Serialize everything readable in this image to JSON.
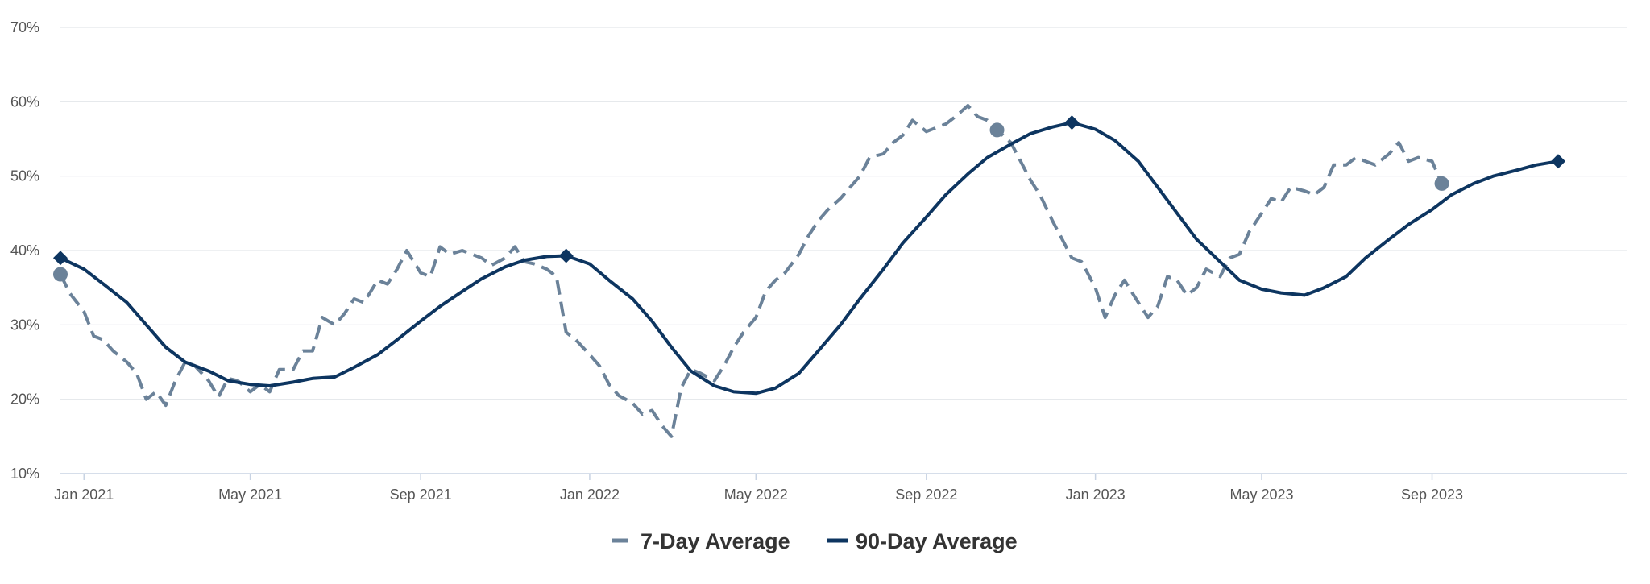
{
  "chart_data": {
    "type": "line",
    "title": "",
    "xlabel": "",
    "ylabel": "",
    "ylim": [
      10,
      70
    ],
    "y_ticks": [
      "10%",
      "20%",
      "30%",
      "40%",
      "50%",
      "60%",
      "70%"
    ],
    "x_range": [
      "2020-12-15",
      "2024-01-20"
    ],
    "x_ticks": [
      {
        "date": "2021-01-01",
        "label": "Jan 2021"
      },
      {
        "date": "2021-05-01",
        "label": "May 2021"
      },
      {
        "date": "2021-09-01",
        "label": "Sep 2021"
      },
      {
        "date": "2022-01-01",
        "label": "Jan 2022"
      },
      {
        "date": "2022-05-01",
        "label": "May 2022"
      },
      {
        "date": "2022-09-01",
        "label": "Sep 2022"
      },
      {
        "date": "2023-01-01",
        "label": "Jan 2023"
      },
      {
        "date": "2023-05-01",
        "label": "May 2023"
      },
      {
        "date": "2023-09-01",
        "label": "Sep 2023"
      }
    ],
    "grid": true,
    "legend_position": "bottom-center",
    "series": [
      {
        "name": "7-Day Average",
        "color": "#6b8299",
        "style": "dashed",
        "marker": "circle",
        "points": [
          [
            "2020-12-15",
            36.8
          ],
          [
            "2020-12-22",
            34.2
          ],
          [
            "2021-01-01",
            31.8
          ],
          [
            "2021-01-08",
            28.5
          ],
          [
            "2021-01-15",
            28.0
          ],
          [
            "2021-01-22",
            26.5
          ],
          [
            "2021-02-01",
            25.0
          ],
          [
            "2021-02-08",
            23.5
          ],
          [
            "2021-02-15",
            20.0
          ],
          [
            "2021-02-22",
            21.0
          ],
          [
            "2021-03-01",
            19.2
          ],
          [
            "2021-03-08",
            22.5
          ],
          [
            "2021-03-15",
            25.0
          ],
          [
            "2021-03-22",
            24.5
          ],
          [
            "2021-04-01",
            22.5
          ],
          [
            "2021-04-08",
            20.3
          ],
          [
            "2021-04-15",
            22.8
          ],
          [
            "2021-04-22",
            22.5
          ],
          [
            "2021-05-01",
            21.0
          ],
          [
            "2021-05-08",
            22.0
          ],
          [
            "2021-05-15",
            21.0
          ],
          [
            "2021-05-22",
            24.0
          ],
          [
            "2021-06-01",
            24.0
          ],
          [
            "2021-06-08",
            26.5
          ],
          [
            "2021-06-15",
            26.5
          ],
          [
            "2021-06-22",
            31.0
          ],
          [
            "2021-07-01",
            30.0
          ],
          [
            "2021-07-08",
            31.5
          ],
          [
            "2021-07-15",
            33.5
          ],
          [
            "2021-07-22",
            33.0
          ],
          [
            "2021-08-01",
            36.0
          ],
          [
            "2021-08-08",
            35.5
          ],
          [
            "2021-08-15",
            37.5
          ],
          [
            "2021-08-22",
            40.0
          ],
          [
            "2021-09-01",
            37.0
          ],
          [
            "2021-09-08",
            36.5
          ],
          [
            "2021-09-15",
            40.5
          ],
          [
            "2021-09-22",
            39.5
          ],
          [
            "2021-10-01",
            40.0
          ],
          [
            "2021-10-08",
            39.5
          ],
          [
            "2021-10-15",
            39.0
          ],
          [
            "2021-10-22",
            38.0
          ],
          [
            "2021-11-01",
            39.0
          ],
          [
            "2021-11-08",
            40.5
          ],
          [
            "2021-11-15",
            38.5
          ],
          [
            "2021-11-22",
            38.2
          ],
          [
            "2021-12-01",
            37.5
          ],
          [
            "2021-12-08",
            36.5
          ],
          [
            "2021-12-15",
            29.0
          ],
          [
            "2021-12-22",
            28.0
          ],
          [
            "2022-01-01",
            26.0
          ],
          [
            "2022-01-08",
            24.5
          ],
          [
            "2022-01-15",
            22.0
          ],
          [
            "2022-01-22",
            20.5
          ],
          [
            "2022-02-01",
            19.5
          ],
          [
            "2022-02-08",
            18.0
          ],
          [
            "2022-02-15",
            18.5
          ],
          [
            "2022-02-22",
            16.5
          ],
          [
            "2022-03-01",
            15.0
          ],
          [
            "2022-03-08",
            21.5
          ],
          [
            "2022-03-15",
            24.0
          ],
          [
            "2022-03-22",
            23.5
          ],
          [
            "2022-04-01",
            22.5
          ],
          [
            "2022-04-08",
            24.5
          ],
          [
            "2022-04-15",
            27.0
          ],
          [
            "2022-04-22",
            29.0
          ],
          [
            "2022-05-01",
            31.0
          ],
          [
            "2022-05-08",
            34.5
          ],
          [
            "2022-05-15",
            36.0
          ],
          [
            "2022-05-22",
            37.0
          ],
          [
            "2022-06-01",
            39.5
          ],
          [
            "2022-06-08",
            42.0
          ],
          [
            "2022-06-15",
            44.0
          ],
          [
            "2022-06-22",
            45.5
          ],
          [
            "2022-07-01",
            47.0
          ],
          [
            "2022-07-08",
            48.5
          ],
          [
            "2022-07-15",
            50.0
          ],
          [
            "2022-07-22",
            52.5
          ],
          [
            "2022-08-01",
            53.0
          ],
          [
            "2022-08-08",
            54.5
          ],
          [
            "2022-08-15",
            55.5
          ],
          [
            "2022-08-22",
            57.5
          ],
          [
            "2022-09-01",
            56.0
          ],
          [
            "2022-09-08",
            56.5
          ],
          [
            "2022-09-15",
            57.0
          ],
          [
            "2022-09-22",
            58.0
          ],
          [
            "2022-10-01",
            59.5
          ],
          [
            "2022-10-08",
            58.0
          ],
          [
            "2022-10-15",
            57.5
          ],
          [
            "2022-10-22",
            56.2
          ],
          [
            "2022-11-01",
            54.5
          ],
          [
            "2022-11-08",
            52.0
          ],
          [
            "2022-11-15",
            49.5
          ],
          [
            "2022-11-22",
            47.5
          ],
          [
            "2022-12-01",
            44.0
          ],
          [
            "2022-12-08",
            41.5
          ],
          [
            "2022-12-15",
            39.0
          ],
          [
            "2022-12-22",
            38.5
          ],
          [
            "2023-01-01",
            35.0
          ],
          [
            "2023-01-08",
            31.0
          ],
          [
            "2023-01-15",
            34.0
          ],
          [
            "2023-01-22",
            36.0
          ],
          [
            "2023-02-01",
            33.0
          ],
          [
            "2023-02-08",
            31.0
          ],
          [
            "2023-02-15",
            32.5
          ],
          [
            "2023-02-22",
            36.5
          ],
          [
            "2023-03-01",
            36.0
          ],
          [
            "2023-03-08",
            34.0
          ],
          [
            "2023-03-15",
            35.0
          ],
          [
            "2023-03-22",
            37.5
          ],
          [
            "2023-04-01",
            36.5
          ],
          [
            "2023-04-08",
            39.0
          ],
          [
            "2023-04-15",
            39.5
          ],
          [
            "2023-04-22",
            42.5
          ],
          [
            "2023-05-01",
            45.0
          ],
          [
            "2023-05-08",
            47.0
          ],
          [
            "2023-05-15",
            46.5
          ],
          [
            "2023-05-22",
            48.5
          ],
          [
            "2023-06-01",
            48.0
          ],
          [
            "2023-06-08",
            47.5
          ],
          [
            "2023-06-15",
            48.5
          ],
          [
            "2023-06-22",
            51.5
          ],
          [
            "2023-07-01",
            51.5
          ],
          [
            "2023-07-08",
            52.5
          ],
          [
            "2023-07-15",
            52.0
          ],
          [
            "2023-07-22",
            51.5
          ],
          [
            "2023-08-01",
            53.0
          ],
          [
            "2023-08-08",
            54.5
          ],
          [
            "2023-08-15",
            52.0
          ],
          [
            "2023-08-22",
            52.5
          ],
          [
            "2023-09-01",
            52.0
          ],
          [
            "2023-09-08",
            49.0
          ]
        ]
      },
      {
        "name": "90-Day Average",
        "color": "#0d3560",
        "style": "solid",
        "marker": "diamond",
        "points": [
          [
            "2020-12-15",
            39.0
          ],
          [
            "2021-01-01",
            37.5
          ],
          [
            "2021-01-15",
            35.5
          ],
          [
            "2021-02-01",
            33.0
          ],
          [
            "2021-02-15",
            30.0
          ],
          [
            "2021-03-01",
            27.0
          ],
          [
            "2021-03-15",
            25.0
          ],
          [
            "2021-04-01",
            23.8
          ],
          [
            "2021-04-15",
            22.5
          ],
          [
            "2021-05-01",
            22.0
          ],
          [
            "2021-05-15",
            21.8
          ],
          [
            "2021-06-01",
            22.3
          ],
          [
            "2021-06-15",
            22.8
          ],
          [
            "2021-07-01",
            23.0
          ],
          [
            "2021-07-15",
            24.3
          ],
          [
            "2021-08-01",
            26.0
          ],
          [
            "2021-08-15",
            28.0
          ],
          [
            "2021-09-01",
            30.5
          ],
          [
            "2021-09-15",
            32.5
          ],
          [
            "2021-10-01",
            34.5
          ],
          [
            "2021-10-15",
            36.2
          ],
          [
            "2021-11-01",
            37.8
          ],
          [
            "2021-11-15",
            38.7
          ],
          [
            "2021-12-01",
            39.2
          ],
          [
            "2021-12-15",
            39.3
          ],
          [
            "2022-01-01",
            38.2
          ],
          [
            "2022-01-15",
            36.0
          ],
          [
            "2022-02-01",
            33.5
          ],
          [
            "2022-02-15",
            30.5
          ],
          [
            "2022-03-01",
            27.0
          ],
          [
            "2022-03-15",
            23.8
          ],
          [
            "2022-04-01",
            21.8
          ],
          [
            "2022-04-15",
            21.0
          ],
          [
            "2022-05-01",
            20.8
          ],
          [
            "2022-05-15",
            21.5
          ],
          [
            "2022-06-01",
            23.5
          ],
          [
            "2022-06-15",
            26.5
          ],
          [
            "2022-07-01",
            30.0
          ],
          [
            "2022-07-15",
            33.5
          ],
          [
            "2022-08-01",
            37.5
          ],
          [
            "2022-08-15",
            41.0
          ],
          [
            "2022-09-01",
            44.5
          ],
          [
            "2022-09-15",
            47.5
          ],
          [
            "2022-10-01",
            50.3
          ],
          [
            "2022-10-15",
            52.5
          ],
          [
            "2022-11-01",
            54.3
          ],
          [
            "2022-11-15",
            55.7
          ],
          [
            "2022-12-01",
            56.6
          ],
          [
            "2022-12-15",
            57.2
          ],
          [
            "2023-01-01",
            56.3
          ],
          [
            "2023-01-15",
            54.8
          ],
          [
            "2023-02-01",
            52.0
          ],
          [
            "2023-02-15",
            48.5
          ],
          [
            "2023-03-01",
            45.0
          ],
          [
            "2023-03-15",
            41.5
          ],
          [
            "2023-04-01",
            38.5
          ],
          [
            "2023-04-15",
            36.0
          ],
          [
            "2023-05-01",
            34.8
          ],
          [
            "2023-05-15",
            34.3
          ],
          [
            "2023-06-01",
            34.0
          ],
          [
            "2023-06-15",
            35.0
          ],
          [
            "2023-07-01",
            36.5
          ],
          [
            "2023-07-15",
            39.0
          ],
          [
            "2023-08-01",
            41.5
          ],
          [
            "2023-08-15",
            43.5
          ],
          [
            "2023-09-01",
            45.5
          ],
          [
            "2023-09-15",
            47.5
          ],
          [
            "2023-10-01",
            49.0
          ],
          [
            "2023-10-15",
            50.0
          ],
          [
            "2023-11-01",
            50.8
          ],
          [
            "2023-11-15",
            51.5
          ],
          [
            "2023-12-01",
            52.0
          ]
        ]
      }
    ],
    "markers": [
      {
        "series": "7-Day Average",
        "shape": "circle",
        "points": [
          [
            "2020-12-15",
            36.8
          ],
          [
            "2022-10-22",
            56.2
          ],
          [
            "2023-09-08",
            49.0
          ]
        ]
      },
      {
        "series": "90-Day Average",
        "shape": "diamond",
        "points": [
          [
            "2020-12-15",
            39.0
          ],
          [
            "2021-12-15",
            39.3
          ],
          [
            "2022-12-15",
            57.2
          ],
          [
            "2023-12-01",
            52.0
          ]
        ]
      }
    ]
  },
  "legend": {
    "items": [
      {
        "label": "7-Day Average",
        "color": "#6b8299",
        "icon": "dash-icon"
      },
      {
        "label": "90-Day Average",
        "color": "#0d3560",
        "icon": "line-icon"
      }
    ]
  }
}
